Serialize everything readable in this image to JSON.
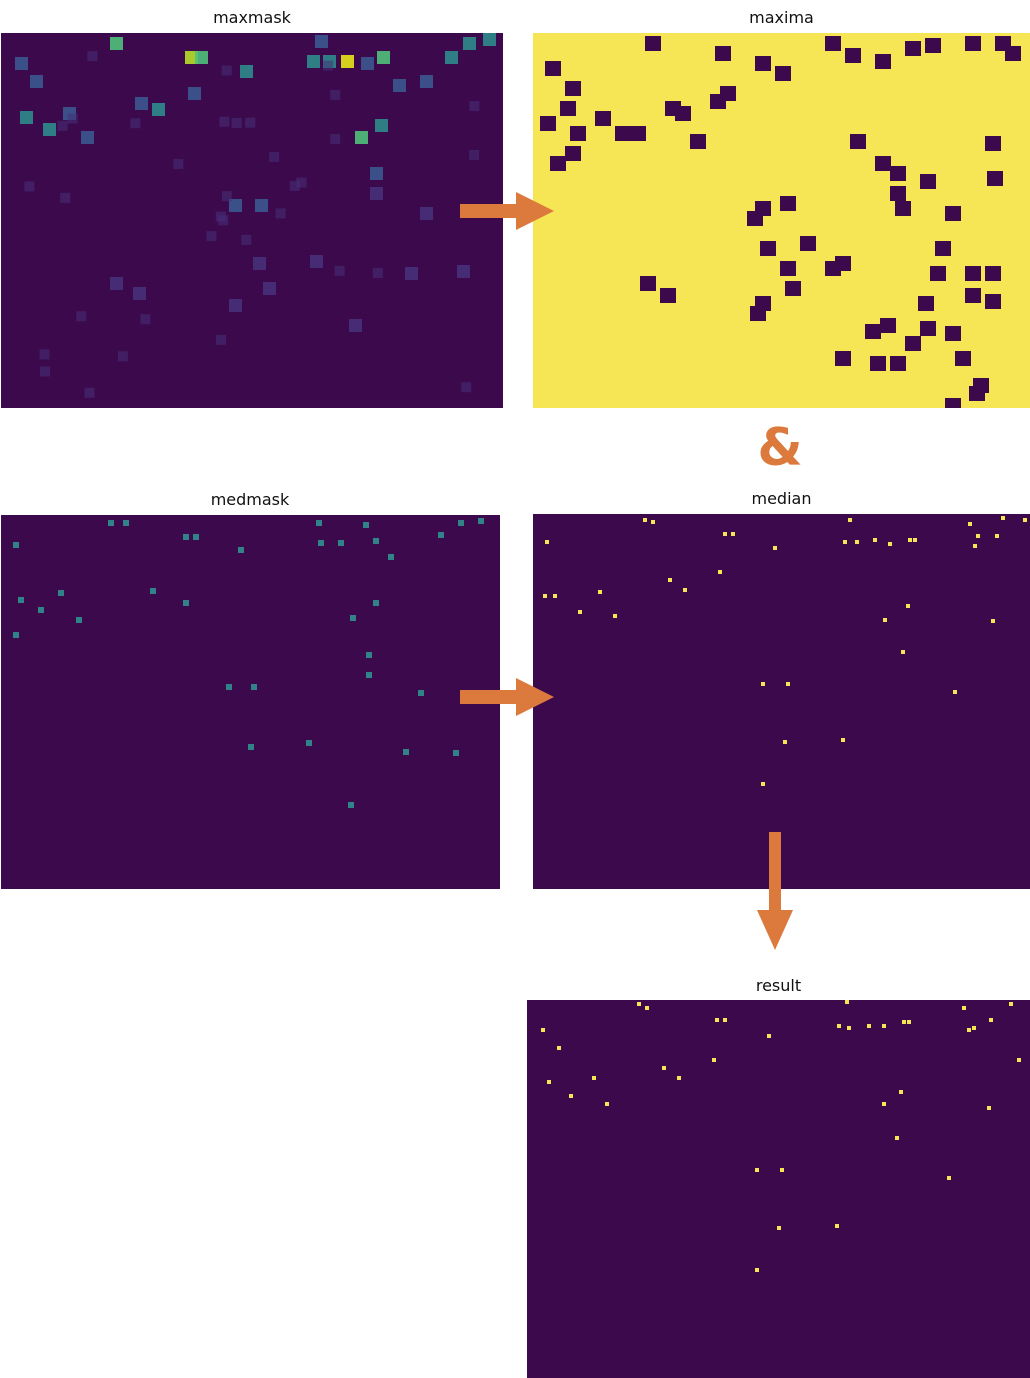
{
  "colors": {
    "background_dark": "#3c0a4c",
    "foreground_yellow": "#f6e655",
    "mid_teal": "#2f8b8c",
    "mid_green": "#4fc17a",
    "mid_blue": "#3b5790",
    "mid_purple": "#47307a",
    "arrow": "#dc7a3d"
  },
  "panels": {
    "maxmask": {
      "title": "maxmask"
    },
    "maxima": {
      "title": "maxima"
    },
    "medmask": {
      "title": "medmask"
    },
    "median": {
      "title": "median"
    },
    "result": {
      "title": "result"
    }
  },
  "operator": {
    "symbol": "&"
  }
}
